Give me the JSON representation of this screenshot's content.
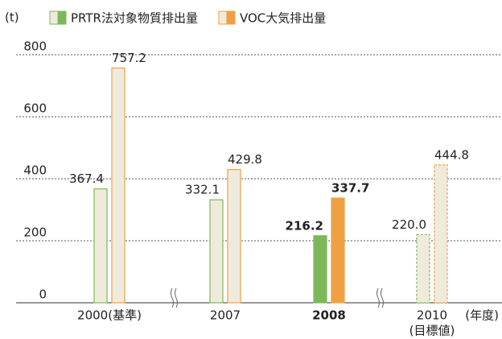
{
  "chart_data": {
    "type": "bar",
    "y_unit": "(t)",
    "x_axis_label": "(年度)",
    "categories": [
      "2000(基準)",
      "2007",
      "2008",
      "2010"
    ],
    "category_sublabels": [
      null,
      null,
      null,
      "(目標値)"
    ],
    "bar_styles": [
      "outline",
      "outline",
      "solid",
      "dashed"
    ],
    "light_fill": "#efebdc",
    "series": [
      {
        "name": "PRTR法対象物質排出量",
        "color": "#7cb85a",
        "values": [
          367.4,
          332.1,
          216.2,
          220.0
        ],
        "value_labels": [
          "367.4",
          "332.1",
          "216.2",
          "220.0"
        ]
      },
      {
        "name": "VOC大気排出量",
        "color": "#f0a044",
        "values": [
          757.2,
          429.8,
          337.7,
          444.8
        ],
        "value_labels": [
          "757.2",
          "429.8",
          "337.7",
          "444.8"
        ]
      }
    ],
    "ylim": [
      0,
      800
    ],
    "yticks": [
      0,
      200,
      400,
      600,
      800
    ],
    "grid": true
  }
}
